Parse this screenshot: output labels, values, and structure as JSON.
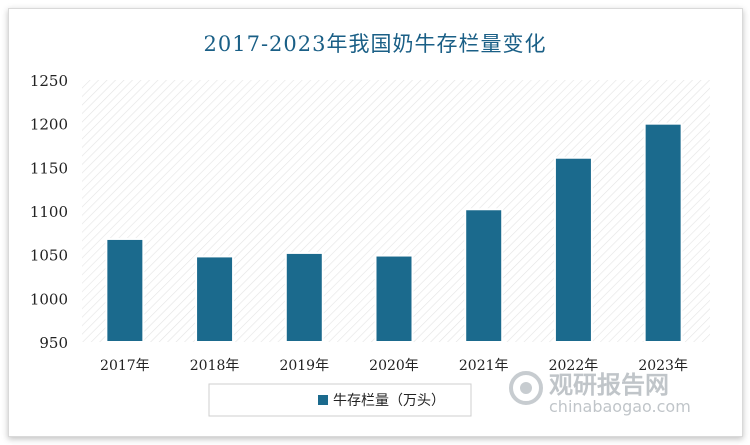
{
  "chart_data": {
    "type": "bar",
    "title": "2017-2023年我国奶牛存栏量变化",
    "categories": [
      "2017年",
      "2018年",
      "2019年",
      "2020年",
      "2021年",
      "2022年",
      "2023年"
    ],
    "series": [
      {
        "name": "牛存栏量（万头）",
        "values": [
          1068,
          1048,
          1052,
          1049,
          1102,
          1161,
          1200
        ]
      }
    ],
    "ylim": [
      950,
      1250
    ],
    "yticks": [
      950,
      1000,
      1050,
      1100,
      1150,
      1200,
      1250
    ],
    "bar_color": "#1b6a8d",
    "grid": false,
    "legend_position": "bottom"
  },
  "watermark": {
    "brand": "观研报告网",
    "url": "chinabaogao.com"
  }
}
